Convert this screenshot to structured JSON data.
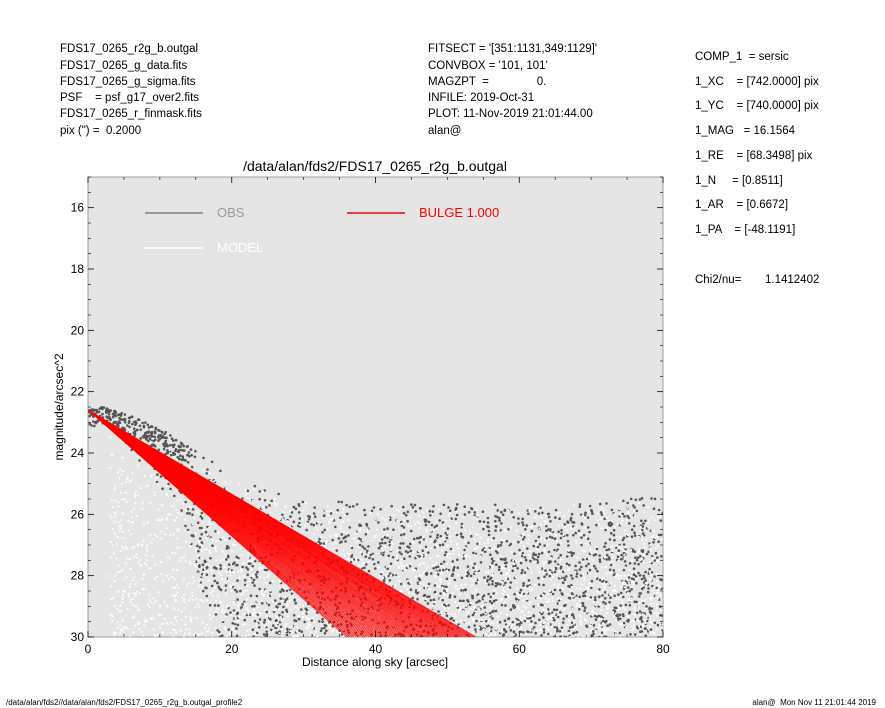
{
  "header": {
    "left": [
      "FDS17_0265_r2g_b.outgal",
      "FDS17_0265_g_data.fits",
      "FDS17_0265_g_sigma.fits",
      "PSF    = psf_g17_over2.fits",
      "FDS17_0265_r_finmask.fits",
      "pix (\") =  0.2000"
    ],
    "middle": [
      "FITSECT = '[351:1131,349:1129]'",
      "CONVBOX = '101, 101'",
      "MAGZPT  =               0.",
      "INFILE: 2019-Oct-31",
      "PLOT: 11-Nov-2019 21:01:44.00",
      "alan@"
    ]
  },
  "params": [
    "COMP_1  = sersic",
    "1_XC    = [742.0000] pix",
    "1_YC    = [740.0000] pix",
    "1_MAG   = 16.1564",
    "1_RE    = [68.3498] pix",
    "1_N     = [0.8511]",
    "1_AR    = [0.6672]",
    "1_PA    = [-48.1191]"
  ],
  "chi2": {
    "label": "Chi2/nu=",
    "value": "1.1412402"
  },
  "footer": {
    "left": "/data/alan/fds2//data/alan/fds2/FDS17_0265_r2g_b.outgal_profile2",
    "right": "alan@  Mon Nov 11 21:01:44 2019"
  },
  "chart_data": {
    "type": "scatter",
    "title": "/data/alan/fds2/FDS17_0265_r2g_b.outgal",
    "xlabel": "Distance along sky [arcsec]",
    "ylabel": "magnitude/arcsec^2",
    "xlim": [
      0,
      80
    ],
    "ylim": [
      30,
      15
    ],
    "y_inverted": true,
    "xticks": [
      "0",
      "20",
      "40",
      "60",
      "80"
    ],
    "yticks": [
      "16",
      "18",
      "20",
      "22",
      "24",
      "26",
      "28",
      "30"
    ],
    "background_color": "#e5e5e5",
    "legend": [
      {
        "name": "OBS",
        "color": "#7f7f7f",
        "text_color": "#999999"
      },
      {
        "name": "MODEL",
        "color": "#ffffff",
        "text_color": "#ffffff"
      },
      {
        "name": "BULGE  1.000",
        "color": "#ff0000",
        "text_color": "#ff0000"
      }
    ],
    "series": [
      {
        "name": "OBS",
        "color": "#555555",
        "approx_upper_envelope": [
          [
            0,
            22.6
          ],
          [
            2,
            22.5
          ],
          [
            6,
            22.8
          ],
          [
            10,
            23.2
          ],
          [
            14,
            23.8
          ],
          [
            20,
            24.6
          ],
          [
            25,
            25.2
          ],
          [
            30,
            25.5
          ],
          [
            40,
            25.6
          ],
          [
            60,
            25.7
          ],
          [
            80,
            25.4
          ]
        ],
        "approx_lower_envelope": [
          [
            0,
            22.8
          ],
          [
            4,
            23.3
          ],
          [
            8,
            24.5
          ],
          [
            12,
            25.8
          ],
          [
            16,
            28.5
          ],
          [
            18,
            30
          ],
          [
            80,
            30
          ]
        ]
      },
      {
        "name": "MODEL",
        "color": "#ffffff",
        "approx_band_upper": [
          [
            0,
            22.6
          ],
          [
            10,
            23.6
          ],
          [
            20,
            24.8
          ],
          [
            30,
            25.6
          ],
          [
            40,
            25.7
          ],
          [
            60,
            25.8
          ],
          [
            80,
            25.5
          ]
        ]
      },
      {
        "name": "BULGE  1.000",
        "color": "#ff0000",
        "approx_upper_edge": [
          [
            0,
            22.6
          ],
          [
            54,
            30
          ]
        ],
        "approx_lower_edge": [
          [
            0,
            22.6
          ],
          [
            36,
            30
          ]
        ]
      }
    ]
  }
}
